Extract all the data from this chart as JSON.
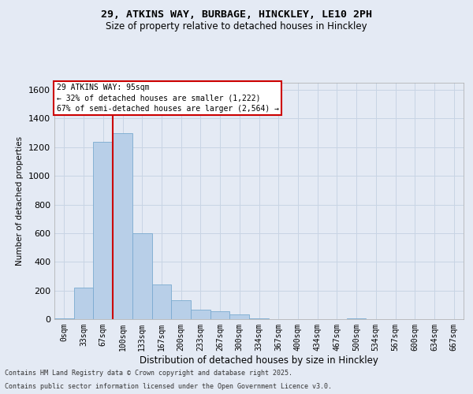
{
  "title1": "29, ATKINS WAY, BURBAGE, HINCKLEY, LE10 2PH",
  "title2": "Size of property relative to detached houses in Hinckley",
  "xlabel": "Distribution of detached houses by size in Hinckley",
  "ylabel": "Number of detached properties",
  "bin_labels": [
    "0sqm",
    "33sqm",
    "67sqm",
    "100sqm",
    "133sqm",
    "167sqm",
    "200sqm",
    "233sqm",
    "267sqm",
    "300sqm",
    "334sqm",
    "367sqm",
    "400sqm",
    "434sqm",
    "467sqm",
    "500sqm",
    "534sqm",
    "567sqm",
    "600sqm",
    "634sqm",
    "667sqm"
  ],
  "bar_values": [
    5,
    220,
    1240,
    1300,
    600,
    240,
    130,
    65,
    55,
    35,
    5,
    0,
    0,
    0,
    0,
    5,
    0,
    0,
    0,
    0,
    0
  ],
  "bar_color": "#b8cfe8",
  "bar_edge_color": "#7aaad0",
  "vline_color": "#cc0000",
  "vline_x": 2.5,
  "ylim": [
    0,
    1650
  ],
  "yticks": [
    0,
    200,
    400,
    600,
    800,
    1000,
    1200,
    1400,
    1600
  ],
  "annotation_title": "29 ATKINS WAY: 95sqm",
  "annotation_line1": "← 32% of detached houses are smaller (1,222)",
  "annotation_line2": "67% of semi-detached houses are larger (2,564) →",
  "annotation_box_facecolor": "#ffffff",
  "annotation_box_edgecolor": "#cc0000",
  "grid_color": "#c8d4e4",
  "bg_color": "#e4eaf4",
  "footer1": "Contains HM Land Registry data © Crown copyright and database right 2025.",
  "footer2": "Contains public sector information licensed under the Open Government Licence v3.0."
}
